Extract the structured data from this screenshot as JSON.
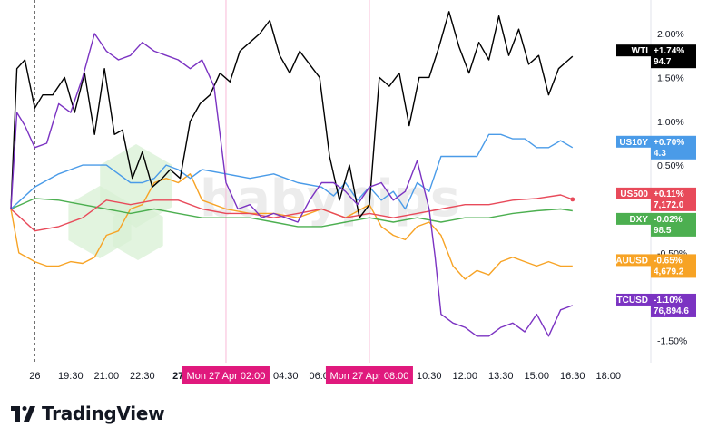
{
  "footer": {
    "brand": "TradingView",
    "logo_icon": "tradingview-logo-icon"
  },
  "watermark": {
    "text": "babypips",
    "icon": "babypips-hexagon-logo"
  },
  "colors": {
    "WTI": "#000000",
    "US10Y": "#4a9be8",
    "US500": "#e84a5a",
    "DXY": "#4caf50",
    "XAUUSD": "#f7a325",
    "BTCUSD": "#7b33c2",
    "session_line": "#f8b9d6",
    "time_badge": "#e0197d"
  },
  "chart_data": {
    "type": "line",
    "y_unit": "percent change",
    "ylim": [
      -1.7,
      2.3
    ],
    "xlim": [
      "2026-04-26 17:00",
      "2026-04-27 18:45"
    ],
    "grid": false,
    "legend": "right-axis labels",
    "y_ticks": [
      {
        "value": 2.0,
        "label": "2.00%"
      },
      {
        "value": 1.5,
        "label": "1.50%"
      },
      {
        "value": 1.0,
        "label": "1.00%"
      },
      {
        "value": 0.5,
        "label": "0.50%"
      },
      {
        "value": -0.5,
        "label": "-0.50%"
      },
      {
        "value": -1.0,
        "label": "-1.00%"
      },
      {
        "value": -1.5,
        "label": "-1.50%"
      }
    ],
    "x_ticks": [
      {
        "t": "2026-04-26 18:00",
        "label": "26"
      },
      {
        "t": "2026-04-26 19:30",
        "label": "19:30"
      },
      {
        "t": "2026-04-26 21:00",
        "label": "21:00"
      },
      {
        "t": "2026-04-26 22:30",
        "label": "22:30"
      },
      {
        "t": "2026-04-27 00:00",
        "label": "27"
      },
      {
        "t": "2026-04-27 04:30",
        "label": "04:30"
      },
      {
        "t": "2026-04-27 06:00",
        "label": "06:00"
      },
      {
        "t": "2026-04-27 10:30",
        "label": "10:30"
      },
      {
        "t": "2026-04-27 12:00",
        "label": "12:00"
      },
      {
        "t": "2026-04-27 13:30",
        "label": "13:30"
      },
      {
        "t": "2026-04-27 15:00",
        "label": "15:00"
      },
      {
        "t": "2026-04-27 16:30",
        "label": "16:30"
      },
      {
        "t": "2026-04-27 18:00",
        "label": "18:00"
      }
    ],
    "session_markers": [
      {
        "t": "2026-04-27 02:00",
        "label": "Mon 27 Apr   02:00"
      },
      {
        "t": "2026-04-27 08:00",
        "label": "Mon 27 Apr   08:00"
      }
    ],
    "series": [
      {
        "name": "WTI",
        "change": "+1.74%",
        "last": "94.7",
        "last_pct": 1.74,
        "x": [
          "2026-04-26 17:00",
          "2026-04-26 17:15",
          "2026-04-26 17:35",
          "2026-04-26 18:00",
          "2026-04-26 18:20",
          "2026-04-26 18:45",
          "2026-04-26 19:15",
          "2026-04-26 19:40",
          "2026-04-26 20:05",
          "2026-04-26 20:30",
          "2026-04-26 20:55",
          "2026-04-26 21:20",
          "2026-04-26 21:40",
          "2026-04-26 22:05",
          "2026-04-26 22:30",
          "2026-04-26 22:55",
          "2026-04-26 23:20",
          "2026-04-26 23:40",
          "2026-04-27 00:05",
          "2026-04-27 00:30",
          "2026-04-27 00:55",
          "2026-04-27 01:20",
          "2026-04-27 01:45",
          "2026-04-27 02:10",
          "2026-04-27 02:35",
          "2026-04-27 03:00",
          "2026-04-27 03:25",
          "2026-04-27 03:50",
          "2026-04-27 04:15",
          "2026-04-27 04:40",
          "2026-04-27 05:05",
          "2026-04-27 05:30",
          "2026-04-27 05:55",
          "2026-04-27 06:20",
          "2026-04-27 06:45",
          "2026-04-27 07:10",
          "2026-04-27 07:35",
          "2026-04-27 08:00",
          "2026-04-27 08:25",
          "2026-04-27 08:50",
          "2026-04-27 09:15",
          "2026-04-27 09:40",
          "2026-04-27 10:05",
          "2026-04-27 10:30",
          "2026-04-27 10:55",
          "2026-04-27 11:20",
          "2026-04-27 11:45",
          "2026-04-27 12:10",
          "2026-04-27 12:35",
          "2026-04-27 13:00",
          "2026-04-27 13:25",
          "2026-04-27 13:50",
          "2026-04-27 14:15",
          "2026-04-27 14:40",
          "2026-04-27 15:05",
          "2026-04-27 15:30",
          "2026-04-27 15:55",
          "2026-04-27 16:20",
          "2026-04-27 16:30"
        ],
        "y": [
          0.0,
          1.6,
          1.7,
          1.15,
          1.3,
          1.3,
          1.5,
          1.1,
          1.55,
          0.85,
          1.6,
          0.85,
          0.9,
          0.35,
          0.65,
          0.25,
          0.35,
          0.45,
          0.35,
          1.0,
          1.2,
          1.3,
          1.55,
          1.45,
          1.8,
          1.9,
          2.0,
          2.15,
          1.75,
          1.55,
          1.8,
          1.65,
          1.5,
          0.6,
          0.1,
          0.5,
          -0.1,
          0.05,
          1.5,
          1.4,
          1.55,
          0.95,
          1.5,
          1.5,
          1.85,
          2.25,
          1.85,
          1.55,
          1.9,
          1.7,
          2.2,
          1.75,
          2.05,
          1.65,
          1.75,
          1.3,
          1.6,
          1.7,
          1.74
        ]
      },
      {
        "name": "US10Y",
        "change": "+0.70%",
        "last": "4.3",
        "last_pct": 0.7,
        "x": [
          "2026-04-26 17:00",
          "2026-04-26 18:00",
          "2026-04-26 19:00",
          "2026-04-26 20:00",
          "2026-04-26 21:00",
          "2026-04-26 22:00",
          "2026-04-26 22:30",
          "2026-04-26 23:00",
          "2026-04-26 23:30",
          "2026-04-27 00:00",
          "2026-04-27 00:30",
          "2026-04-27 01:00",
          "2026-04-27 02:00",
          "2026-04-27 03:00",
          "2026-04-27 04:00",
          "2026-04-27 05:00",
          "2026-04-27 06:00",
          "2026-04-27 06:30",
          "2026-04-27 07:00",
          "2026-04-27 07:30",
          "2026-04-27 08:00",
          "2026-04-27 08:30",
          "2026-04-27 09:00",
          "2026-04-27 09:30",
          "2026-04-27 10:00",
          "2026-04-27 10:30",
          "2026-04-27 11:00",
          "2026-04-27 11:30",
          "2026-04-27 12:00",
          "2026-04-27 12:30",
          "2026-04-27 13:00",
          "2026-04-27 13:30",
          "2026-04-27 14:00",
          "2026-04-27 14:30",
          "2026-04-27 15:00",
          "2026-04-27 15:30",
          "2026-04-27 16:00",
          "2026-04-27 16:30"
        ],
        "y": [
          0.0,
          0.25,
          0.4,
          0.5,
          0.5,
          0.3,
          0.3,
          0.35,
          0.5,
          0.45,
          0.35,
          0.45,
          0.4,
          0.35,
          0.4,
          0.3,
          0.25,
          0.15,
          0.3,
          0.1,
          0.25,
          0.1,
          0.2,
          0.0,
          0.3,
          0.2,
          0.6,
          0.6,
          0.6,
          0.6,
          0.85,
          0.85,
          0.8,
          0.8,
          0.7,
          0.7,
          0.78,
          0.7
        ]
      },
      {
        "name": "US500",
        "change": "+0.11%",
        "last": "7,172.0",
        "last_pct": 0.11,
        "x": [
          "2026-04-26 17:00",
          "2026-04-26 18:00",
          "2026-04-26 19:00",
          "2026-04-26 20:00",
          "2026-04-26 21:00",
          "2026-04-26 22:00",
          "2026-04-26 23:00",
          "2026-04-27 00:00",
          "2026-04-27 01:00",
          "2026-04-27 02:00",
          "2026-04-27 03:00",
          "2026-04-27 04:00",
          "2026-04-27 05:00",
          "2026-04-27 06:00",
          "2026-04-27 07:00",
          "2026-04-27 08:00",
          "2026-04-27 09:00",
          "2026-04-27 10:00",
          "2026-04-27 11:00",
          "2026-04-27 12:00",
          "2026-04-27 13:00",
          "2026-04-27 14:00",
          "2026-04-27 15:00",
          "2026-04-27 16:00",
          "2026-04-27 16:30"
        ],
        "y": [
          0.0,
          -0.25,
          -0.2,
          -0.1,
          0.1,
          0.05,
          0.1,
          0.1,
          0.0,
          -0.05,
          -0.05,
          -0.1,
          -0.05,
          0.0,
          -0.1,
          -0.05,
          -0.1,
          -0.05,
          0.0,
          0.05,
          0.05,
          0.1,
          0.12,
          0.16,
          0.11
        ]
      },
      {
        "name": "DXY",
        "change": "-0.02%",
        "last": "98.5",
        "last_pct": -0.02,
        "x": [
          "2026-04-26 17:00",
          "2026-04-26 18:00",
          "2026-04-26 19:00",
          "2026-04-26 20:00",
          "2026-04-26 21:00",
          "2026-04-26 22:00",
          "2026-04-26 23:00",
          "2026-04-27 00:00",
          "2026-04-27 01:00",
          "2026-04-27 02:00",
          "2026-04-27 03:00",
          "2026-04-27 04:00",
          "2026-04-27 05:00",
          "2026-04-27 06:00",
          "2026-04-27 07:00",
          "2026-04-27 08:00",
          "2026-04-27 09:00",
          "2026-04-27 10:00",
          "2026-04-27 11:00",
          "2026-04-27 12:00",
          "2026-04-27 13:00",
          "2026-04-27 14:00",
          "2026-04-27 15:00",
          "2026-04-27 16:00",
          "2026-04-27 16:30"
        ],
        "y": [
          0.0,
          0.12,
          0.1,
          0.05,
          0.0,
          -0.05,
          0.0,
          -0.05,
          -0.1,
          -0.1,
          -0.1,
          -0.15,
          -0.2,
          -0.2,
          -0.15,
          -0.1,
          -0.15,
          -0.1,
          -0.15,
          -0.1,
          -0.1,
          -0.05,
          -0.02,
          0.0,
          -0.02
        ]
      },
      {
        "name": "XAUUSD",
        "change": "-0.65%",
        "last": "4,679.2",
        "last_pct": -0.65,
        "x": [
          "2026-04-26 17:00",
          "2026-04-26 17:20",
          "2026-04-26 17:40",
          "2026-04-26 18:00",
          "2026-04-26 18:30",
          "2026-04-26 19:00",
          "2026-04-26 19:30",
          "2026-04-26 20:00",
          "2026-04-26 20:30",
          "2026-04-26 21:00",
          "2026-04-26 21:30",
          "2026-04-26 22:00",
          "2026-04-26 22:30",
          "2026-04-26 23:00",
          "2026-04-26 23:30",
          "2026-04-27 00:00",
          "2026-04-27 00:30",
          "2026-04-27 01:00",
          "2026-04-27 02:00",
          "2026-04-27 03:00",
          "2026-04-27 04:00",
          "2026-04-27 05:00",
          "2026-04-27 06:00",
          "2026-04-27 07:00",
          "2026-04-27 08:00",
          "2026-04-27 08:30",
          "2026-04-27 09:00",
          "2026-04-27 09:30",
          "2026-04-27 10:00",
          "2026-04-27 10:30",
          "2026-04-27 11:00",
          "2026-04-27 11:30",
          "2026-04-27 12:00",
          "2026-04-27 12:30",
          "2026-04-27 13:00",
          "2026-04-27 13:30",
          "2026-04-27 14:00",
          "2026-04-27 14:30",
          "2026-04-27 15:00",
          "2026-04-27 15:30",
          "2026-04-27 16:00",
          "2026-04-27 16:30"
        ],
        "y": [
          0.0,
          -0.5,
          -0.55,
          -0.6,
          -0.65,
          -0.65,
          -0.6,
          -0.62,
          -0.55,
          -0.3,
          -0.25,
          0.0,
          0.05,
          0.3,
          0.35,
          0.3,
          0.4,
          0.1,
          0.0,
          -0.05,
          -0.05,
          -0.1,
          0.0,
          -0.1,
          0.05,
          -0.2,
          -0.3,
          -0.35,
          -0.2,
          -0.15,
          -0.3,
          -0.65,
          -0.8,
          -0.7,
          -0.75,
          -0.6,
          -0.55,
          -0.6,
          -0.65,
          -0.6,
          -0.65,
          -0.65
        ]
      },
      {
        "name": "BTCUSD",
        "change": "-1.10%",
        "last": "76,894.6",
        "last_pct": -1.1,
        "x": [
          "2026-04-26 17:00",
          "2026-04-26 17:15",
          "2026-04-26 17:35",
          "2026-04-26 18:00",
          "2026-04-26 18:30",
          "2026-04-26 19:00",
          "2026-04-26 19:30",
          "2026-04-26 20:00",
          "2026-04-26 20:30",
          "2026-04-26 21:00",
          "2026-04-26 21:30",
          "2026-04-26 22:00",
          "2026-04-26 22:30",
          "2026-04-26 23:00",
          "2026-04-26 23:30",
          "2026-04-27 00:00",
          "2026-04-27 00:30",
          "2026-04-27 01:00",
          "2026-04-27 01:30",
          "2026-04-27 02:00",
          "2026-04-27 02:30",
          "2026-04-27 03:00",
          "2026-04-27 03:30",
          "2026-04-27 04:00",
          "2026-04-27 04:30",
          "2026-04-27 05:00",
          "2026-04-27 05:30",
          "2026-04-27 06:00",
          "2026-04-27 06:30",
          "2026-04-27 07:00",
          "2026-04-27 07:30",
          "2026-04-27 08:00",
          "2026-04-27 08:30",
          "2026-04-27 09:00",
          "2026-04-27 09:30",
          "2026-04-27 10:00",
          "2026-04-27 10:30",
          "2026-04-27 10:45",
          "2026-04-27 11:00",
          "2026-04-27 11:30",
          "2026-04-27 12:00",
          "2026-04-27 12:30",
          "2026-04-27 13:00",
          "2026-04-27 13:30",
          "2026-04-27 14:00",
          "2026-04-27 14:30",
          "2026-04-27 15:00",
          "2026-04-27 15:30",
          "2026-04-27 16:00",
          "2026-04-27 16:30"
        ],
        "y": [
          0.0,
          1.1,
          0.95,
          0.7,
          0.75,
          1.2,
          1.1,
          1.5,
          2.0,
          1.8,
          1.7,
          1.75,
          1.9,
          1.8,
          1.75,
          1.7,
          1.6,
          1.7,
          1.4,
          0.3,
          0.0,
          0.05,
          -0.1,
          -0.05,
          -0.1,
          -0.15,
          0.1,
          0.3,
          0.3,
          0.2,
          0.05,
          0.25,
          0.3,
          0.1,
          0.2,
          0.55,
          0.0,
          -0.55,
          -1.2,
          -1.3,
          -1.35,
          -1.45,
          -1.45,
          -1.35,
          -1.3,
          -1.4,
          -1.2,
          -1.45,
          -1.15,
          -1.1
        ]
      }
    ]
  }
}
